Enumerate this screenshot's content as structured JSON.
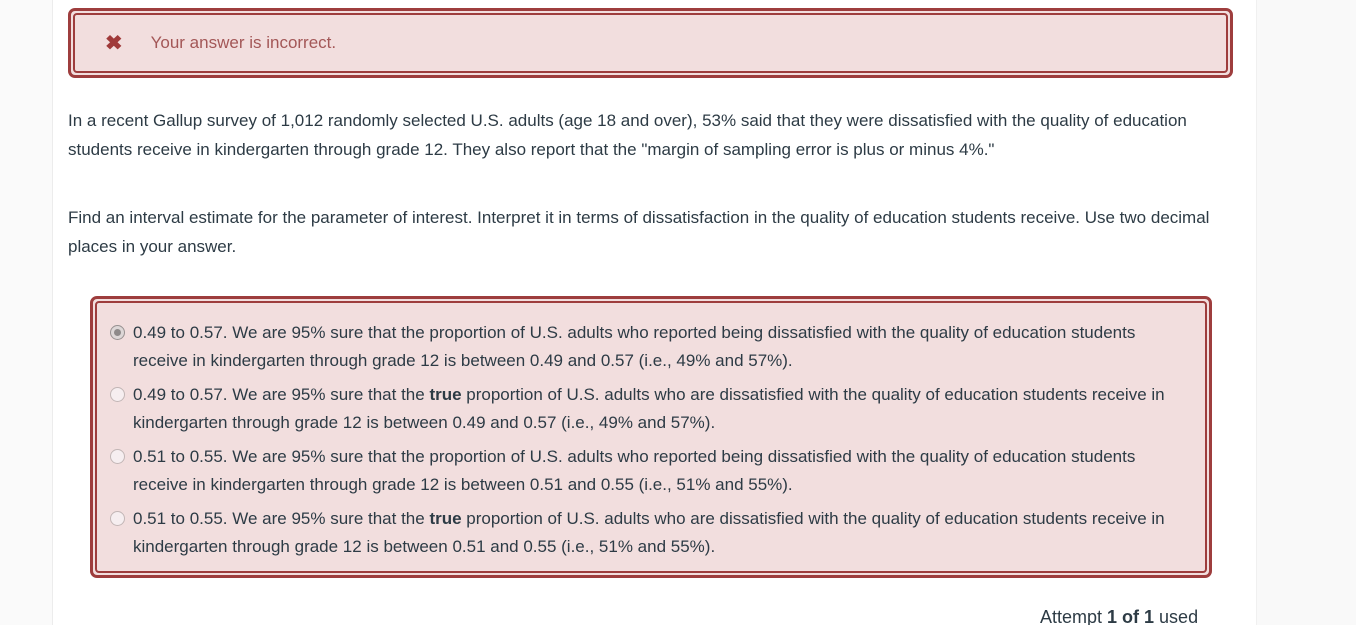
{
  "alert": {
    "icon": "x-icon",
    "icon_glyph": "✖",
    "message": "Your answer is incorrect.",
    "border_color": "#9e3d3d",
    "background": "#f2dede",
    "text_color": "#a35757"
  },
  "question": {
    "paragraph1": "In a recent Gallup survey of 1,012 randomly selected U.S. adults (age 18 and over), 53% said that they were dissatisfied with the quality of education students receive in kindergarten through grade 12. They also report that the \"margin of sampling error is plus or minus 4%.\"",
    "paragraph2": "Find an interval estimate for the parameter of interest. Interpret it in terms of dissatisfaction in the quality of education students receive. Use two decimal places in your answer."
  },
  "options": {
    "border_color": "#9e3d3d",
    "background": "#f2dede",
    "items": [
      {
        "selected": true,
        "text_before": "0.49 to 0.57. We are 95% sure that the proportion of U.S. adults who reported being dissatisfied with the quality of education students receive in kindergarten through grade 12 is between 0.49 and 0.57 (i.e., 49% and 57%).",
        "bold": "",
        "text_after": ""
      },
      {
        "selected": false,
        "text_before": "0.49 to 0.57. We are 95% sure that the ",
        "bold": "true",
        "text_after": " proportion of U.S. adults who are dissatisfied with the quality of education students receive in kindergarten through grade 12 is between 0.49 and 0.57 (i.e., 49% and 57%)."
      },
      {
        "selected": false,
        "text_before": "0.51 to 0.55. We are 95% sure that the proportion of U.S. adults who reported being dissatisfied with the quality of education students receive in kindergarten through grade 12 is between 0.51 and 0.55 (i.e., 51% and 55%).",
        "bold": "",
        "text_after": ""
      },
      {
        "selected": false,
        "text_before": "0.51 to 0.55. We are 95% sure that the ",
        "bold": "true",
        "text_after": " proportion of U.S. adults who are dissatisfied with the quality of education students receive in kindergarten through grade 12 is between 0.51 and 0.55 (i.e., 51% and 55%)."
      }
    ]
  },
  "footer": {
    "attempt_prefix": "Attempt",
    "attempt_count": "1 of 1",
    "attempt_suffix": "used"
  }
}
